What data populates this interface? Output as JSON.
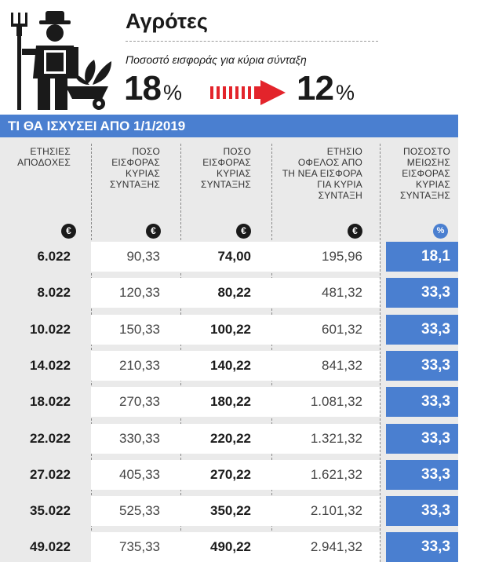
{
  "header": {
    "title": "Αγρότες",
    "subtitle": "Ποσοστό εισφοράς για κύρια σύνταξη",
    "rate_old": "18",
    "rate_new": "12",
    "percent_sign": "%"
  },
  "banner": "ΤΙ ΘΑ ΙΣΧΥΣΕΙ ΑΠΟ 1/1/2019",
  "columns": [
    {
      "label": "ΕΤΗΣΙΕΣ\nΑΠΟΔΟΧΕΣ",
      "unit": "€"
    },
    {
      "label": "ΠΟΣΟ\nΕΙΣΦΟΡΑΣ\nΚΥΡΙΑΣ\nΣΥΝΤΑΞΗΣ",
      "unit": "€"
    },
    {
      "label": "ΠΟΣΟ\nΕΙΣΦΟΡΑΣ\nΚΥΡΙΑΣ\nΣΥΝΤΑΞΗΣ",
      "unit": "€"
    },
    {
      "label": "ΕΤΗΣΙΟ\nΟΦΕΛΟΣ ΑΠΟ\nΤΗ ΝΕΑ ΕΙΣΦΟΡΑ\nΓΙΑ ΚΥΡΙΑ\nΣΥΝΤΑΞΗ",
      "unit": "€"
    },
    {
      "label": "ΠΟΣΟΣΤΟ\nΜΕΙΩΣΗΣ\nΕΙΣΦΟΡΑΣ\nΚΥΡΙΑΣ\nΣΥΝΤΑΞΗΣ",
      "unit": "%"
    }
  ],
  "rows": [
    [
      "6.022",
      "90,33",
      "74,00",
      "195,96",
      "18,1"
    ],
    [
      "8.022",
      "120,33",
      "80,22",
      "481,32",
      "33,3"
    ],
    [
      "10.022",
      "150,33",
      "100,22",
      "601,32",
      "33,3"
    ],
    [
      "14.022",
      "210,33",
      "140,22",
      "841,32",
      "33,3"
    ],
    [
      "18.022",
      "270,33",
      "180,22",
      "1.081,32",
      "33,3"
    ],
    [
      "22.022",
      "330,33",
      "220,22",
      "1.321,32",
      "33,3"
    ],
    [
      "27.022",
      "405,33",
      "270,22",
      "1.621,32",
      "33,3"
    ],
    [
      "35.022",
      "525,33",
      "350,22",
      "2.101,32",
      "33,3"
    ],
    [
      "49.022",
      "735,33",
      "490,22",
      "2.941,32",
      "33,3"
    ]
  ],
  "colors": {
    "accent_blue": "#4a7fd0",
    "arrow_red": "#e3242b",
    "row_gray": "#eaeaea"
  },
  "icons": [
    "farmer-icon",
    "arrow-icon"
  ]
}
